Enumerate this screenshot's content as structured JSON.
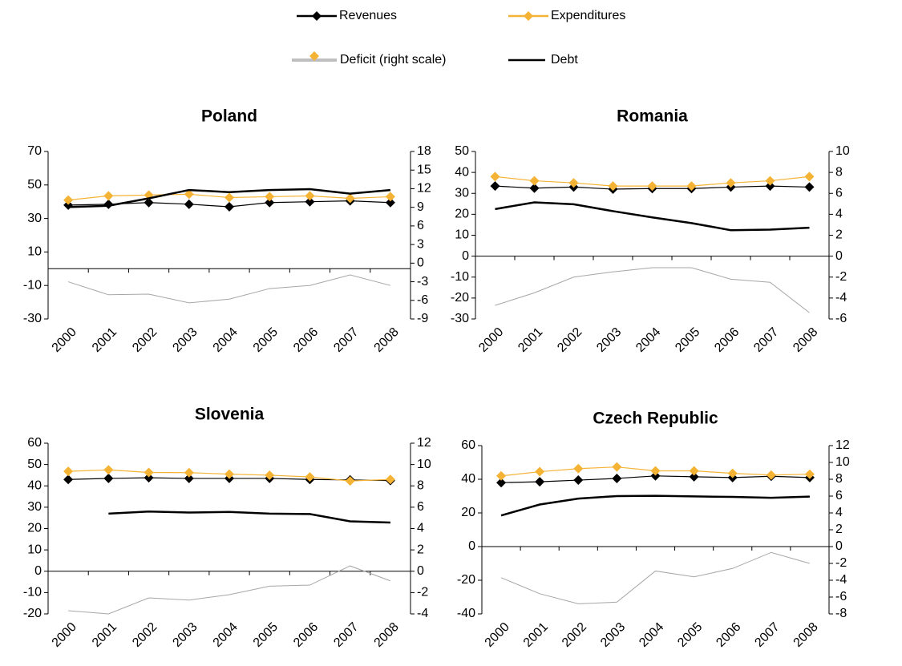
{
  "chart_data": [
    {
      "type": "line",
      "title": "Poland",
      "categories": [
        "2000",
        "2001",
        "2002",
        "2003",
        "2004",
        "2005",
        "2006",
        "2007",
        "2008"
      ],
      "ylim": [
        -30,
        70
      ],
      "yticks": [
        -30,
        -10,
        10,
        30,
        50,
        70
      ],
      "y2lim": [
        -9,
        18
      ],
      "y2ticks": [
        -9,
        -6,
        -3,
        0,
        3,
        6,
        9,
        12,
        15,
        18
      ],
      "series": [
        {
          "name": "Revenues",
          "color": "#000000",
          "marker": "diamond",
          "values": [
            38,
            38.5,
            39.5,
            38.5,
            37,
            39.5,
            40,
            40.5,
            39.5
          ]
        },
        {
          "name": "Expenditures",
          "color": "#f5b335",
          "marker": "diamond",
          "values": [
            41,
            43.5,
            44,
            44.5,
            42.5,
            43,
            43.5,
            42,
            43
          ]
        },
        {
          "name": "Deficit (right scale)",
          "color": "#a6a6a6",
          "axis": "y2",
          "values": [
            -3.0,
            -5.1,
            -5.0,
            -6.4,
            -5.8,
            -4.1,
            -3.6,
            -1.9,
            -3.6
          ]
        },
        {
          "name": "Debt",
          "color": "#000000",
          "values": [
            36.8,
            37.6,
            42,
            47,
            45.7,
            47,
            47.5,
            44.8,
            47
          ]
        }
      ]
    },
    {
      "type": "line",
      "title": "Romania",
      "categories": [
        "2000",
        "2001",
        "2002",
        "2003",
        "2004",
        "2005",
        "2006",
        "2007",
        "2008"
      ],
      "ylim": [
        -30,
        50
      ],
      "yticks": [
        -30,
        -20,
        -10,
        0,
        10,
        20,
        30,
        40,
        50
      ],
      "y2lim": [
        -6,
        10
      ],
      "y2ticks": [
        -6,
        -4,
        -2,
        0,
        2,
        4,
        6,
        8,
        10
      ],
      "series": [
        {
          "name": "Revenues",
          "color": "#000000",
          "marker": "diamond",
          "values": [
            33.5,
            32.5,
            33,
            32,
            32.3,
            32.3,
            33,
            33.5,
            33
          ]
        },
        {
          "name": "Expenditures",
          "color": "#f5b335",
          "marker": "diamond",
          "values": [
            38,
            36,
            35,
            33.5,
            33.5,
            33.5,
            35,
            36,
            38
          ]
        },
        {
          "name": "Deficit (right scale)",
          "color": "#a6a6a6",
          "axis": "y2",
          "values": [
            -4.7,
            -3.5,
            -2.0,
            -1.5,
            -1.1,
            -1.1,
            -2.2,
            -2.5,
            -5.4
          ]
        },
        {
          "name": "Debt",
          "color": "#000000",
          "values": [
            22.5,
            25.7,
            24.8,
            21.5,
            18.5,
            15.8,
            12.4,
            12.7,
            13.6
          ]
        }
      ]
    },
    {
      "type": "line",
      "title": "Slovenia",
      "categories": [
        "2000",
        "2001",
        "2002",
        "2003",
        "2004",
        "2005",
        "2006",
        "2007",
        "2008"
      ],
      "ylim": [
        -20,
        60
      ],
      "yticks": [
        -20,
        -10,
        0,
        10,
        20,
        30,
        40,
        50,
        60
      ],
      "y2lim": [
        -4,
        12
      ],
      "y2ticks": [
        -4,
        -2,
        0,
        2,
        4,
        6,
        8,
        10,
        12
      ],
      "series": [
        {
          "name": "Revenues",
          "color": "#000000",
          "marker": "diamond",
          "values": [
            43,
            43.5,
            43.8,
            43.5,
            43.5,
            43.5,
            43,
            42.8,
            42.5
          ]
        },
        {
          "name": "Expenditures",
          "color": "#f5b335",
          "marker": "diamond",
          "values": [
            46.8,
            47.5,
            46.3,
            46.2,
            45.5,
            45,
            44.2,
            42.3,
            43
          ]
        },
        {
          "name": "Deficit (right scale)",
          "color": "#a6a6a6",
          "axis": "y2",
          "values": [
            -3.7,
            -4.0,
            -2.5,
            -2.7,
            -2.2,
            -1.4,
            -1.3,
            0.5,
            -0.9
          ]
        },
        {
          "name": "Debt",
          "color": "#000000",
          "values": [
            null,
            27,
            28,
            27.5,
            27.8,
            27,
            26.8,
            23.4,
            22.8
          ]
        }
      ]
    },
    {
      "type": "line",
      "title": "Czech Republic",
      "categories": [
        "2000",
        "2001",
        "2002",
        "2003",
        "2004",
        "2005",
        "2006",
        "2007",
        "2008"
      ],
      "ylim": [
        -40,
        60
      ],
      "yticks": [
        -40,
        -20,
        0,
        20,
        40,
        60
      ],
      "y2lim": [
        -8,
        12
      ],
      "y2ticks": [
        -8,
        -6,
        -4,
        -2,
        0,
        2,
        4,
        6,
        8,
        10,
        12
      ],
      "series": [
        {
          "name": "Revenues",
          "color": "#000000",
          "marker": "diamond",
          "values": [
            38,
            38.5,
            39.5,
            40.5,
            42,
            41.5,
            41,
            41.8,
            41
          ]
        },
        {
          "name": "Expenditures",
          "color": "#f5b335",
          "marker": "diamond",
          "values": [
            42,
            44.5,
            46.3,
            47.3,
            45,
            45,
            43.5,
            42.5,
            43
          ]
        },
        {
          "name": "Deficit (right scale)",
          "color": "#a6a6a6",
          "axis": "y2",
          "values": [
            -3.7,
            -5.6,
            -6.8,
            -6.6,
            -2.9,
            -3.6,
            -2.6,
            -0.7,
            -2.0
          ]
        },
        {
          "name": "Debt",
          "color": "#000000",
          "values": [
            18.5,
            25,
            28.5,
            30,
            30.2,
            29.8,
            29.5,
            29,
            29.7
          ]
        }
      ]
    }
  ]
}
